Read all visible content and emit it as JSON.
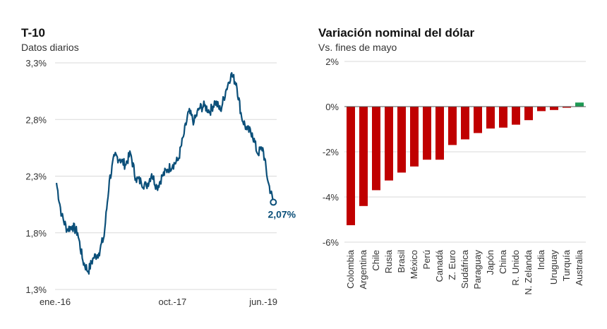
{
  "left_panel": {
    "title": "T-10",
    "subtitle": "Datos diarios"
  },
  "right_panel": {
    "title": "Variación nominal del dólar",
    "subtitle": "Vs. fines de mayo"
  },
  "colors": {
    "line": "#0b4f79",
    "bar_negative": "#c00000",
    "bar_positive": "#1e9a55",
    "grid": "#d9d9d9",
    "annotation": "#0b4f79"
  },
  "chart_data": [
    {
      "type": "line",
      "title": "T-10",
      "subtitle": "Datos diarios",
      "yticks": [
        "3,3%",
        "2,8%",
        "2,3%",
        "1,8%",
        "1,3%"
      ],
      "xticks": [
        "ene.-16",
        "oct.-17",
        "jun.-19"
      ],
      "ylim": [
        1.3,
        3.3
      ],
      "grid": "horizontal",
      "annotation": "2,07%",
      "series": [
        {
          "x": [
            "2016-01",
            "2016-02",
            "2016-03",
            "2016-04",
            "2016-05",
            "2016-06",
            "2016-07",
            "2016-08",
            "2016-09",
            "2016-10",
            "2016-11",
            "2016-12",
            "2017-01",
            "2017-02",
            "2017-03",
            "2017-04",
            "2017-05",
            "2017-06",
            "2017-07",
            "2017-08",
            "2017-09",
            "2017-10",
            "2017-11",
            "2017-12",
            "2018-01",
            "2018-02",
            "2018-03",
            "2018-04",
            "2018-05",
            "2018-06",
            "2018-07",
            "2018-08",
            "2018-09",
            "2018-10",
            "2018-11",
            "2018-12",
            "2019-01",
            "2019-02",
            "2019-03",
            "2019-04",
            "2019-05",
            "2019-06"
          ],
          "values": [
            2.24,
            1.95,
            1.83,
            1.86,
            1.8,
            1.55,
            1.46,
            1.58,
            1.62,
            1.77,
            2.26,
            2.48,
            2.45,
            2.4,
            2.5,
            2.28,
            2.25,
            2.21,
            2.32,
            2.2,
            2.3,
            2.36,
            2.4,
            2.44,
            2.65,
            2.87,
            2.78,
            2.9,
            2.92,
            2.87,
            2.96,
            2.88,
            3.05,
            3.2,
            3.12,
            2.82,
            2.71,
            2.68,
            2.5,
            2.55,
            2.25,
            2.07
          ]
        }
      ]
    },
    {
      "type": "bar",
      "title": "Variación nominal del dólar",
      "subtitle": "Vs. fines de mayo",
      "categories": [
        "Colombia",
        "Argentina",
        "Chile",
        "Rusia",
        "Brasil",
        "México",
        "Perú",
        "Canadá",
        "Z. Euro",
        "Sudáfrica",
        "Paraguay",
        "Japón",
        "China",
        "R. Unido",
        "N. Zelanda",
        "India",
        "Uruguay",
        "Turquía",
        "Australia"
      ],
      "values": [
        -5.25,
        -4.4,
        -3.7,
        -3.27,
        -2.92,
        -2.65,
        -2.35,
        -2.35,
        -1.7,
        -1.45,
        -1.17,
        -0.97,
        -0.93,
        -0.8,
        -0.6,
        -0.2,
        -0.15,
        -0.05,
        0.18
      ],
      "yticks": [
        "2%",
        "0%",
        "-2%",
        "-4%",
        "-6%"
      ],
      "ylim": [
        -6,
        2
      ],
      "grid": "horizontal"
    }
  ]
}
